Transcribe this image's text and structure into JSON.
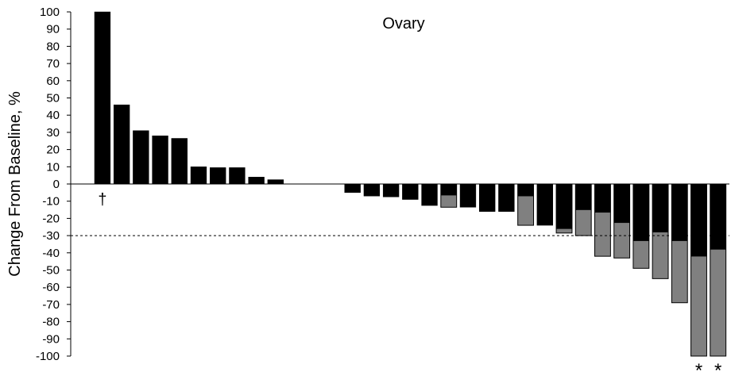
{
  "chart_data": {
    "type": "bar",
    "subtype": "waterfall",
    "title": "Ovary",
    "ylabel": "Change From Baseline, %",
    "xlabel": "",
    "ylim": [
      -100,
      100
    ],
    "ytick_step": 10,
    "yticks": [
      "100",
      "90",
      "80",
      "70",
      "60",
      "50",
      "40",
      "30",
      "20",
      "10",
      "0",
      "-10",
      "-20",
      "-30",
      "-40",
      "-50",
      "-60",
      "-70",
      "-80",
      "-90",
      "-100"
    ],
    "reference_line": {
      "value": -30,
      "style": "dashed"
    },
    "grid": false,
    "legend": "none",
    "colors": {
      "primary": "#000000",
      "secondary": "#808080",
      "reference": "#000000"
    },
    "slots": 33,
    "bars": [
      {
        "slot": 0,
        "value": 100,
        "marker": "†"
      },
      {
        "slot": 1,
        "value": 46
      },
      {
        "slot": 2,
        "value": 31
      },
      {
        "slot": 3,
        "value": 28
      },
      {
        "slot": 4,
        "value": 26.5
      },
      {
        "slot": 5,
        "value": 10
      },
      {
        "slot": 6,
        "value": 9.5
      },
      {
        "slot": 7,
        "value": 9.5
      },
      {
        "slot": 8,
        "value": 4
      },
      {
        "slot": 9,
        "value": 2.5
      },
      {
        "slot": 13,
        "value": -5
      },
      {
        "slot": 14,
        "value": -7
      },
      {
        "slot": 15,
        "value": -7.5
      },
      {
        "slot": 16,
        "value": -9
      },
      {
        "slot": 17,
        "value": -12.5
      },
      {
        "slot": 18,
        "value": -6.5,
        "secondary_value": -13.5
      },
      {
        "slot": 19,
        "value": -13.5
      },
      {
        "slot": 20,
        "value": -16
      },
      {
        "slot": 21,
        "value": -16
      },
      {
        "slot": 22,
        "value": -7,
        "secondary_value": -24
      },
      {
        "slot": 23,
        "value": -24
      },
      {
        "slot": 24,
        "value": -26,
        "secondary_value": -28.5
      },
      {
        "slot": 25,
        "value": -15,
        "secondary_value": -30
      },
      {
        "slot": 26,
        "value": -16.5,
        "secondary_value": -42
      },
      {
        "slot": 27,
        "value": -22.5,
        "secondary_value": -43
      },
      {
        "slot": 28,
        "value": -33,
        "secondary_value": -49
      },
      {
        "slot": 29,
        "value": -28,
        "secondary_value": -55
      },
      {
        "slot": 30,
        "value": -33,
        "secondary_value": -69
      },
      {
        "slot": 31,
        "value": -42,
        "secondary_value": -100,
        "marker": "*"
      },
      {
        "slot": 32,
        "value": -38,
        "secondary_value": -100,
        "marker": "*"
      }
    ]
  }
}
